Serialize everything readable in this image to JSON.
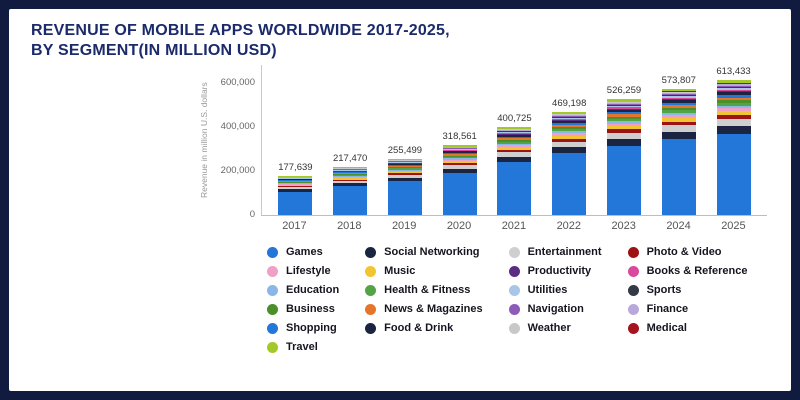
{
  "header": {
    "line1": "REVENUE OF MOBILE APPS WORLDWIDE 2017-2025,",
    "line2": "BY SEGMENT(IN MILLION USD)"
  },
  "colors": {
    "frame_navy": "#101b3f",
    "title_navy": "#1b2a6b",
    "games_blue": "#2277d8"
  },
  "chart_data": {
    "type": "stacked-bar",
    "title": "Revenue of mobile apps worldwide 2017-2025, by segment (in million USD)",
    "ylabel": "Revenue in million U.S. dollars",
    "xlabel": "",
    "grid": false,
    "legend_position": "bottom",
    "categories": [
      "2017",
      "2018",
      "2019",
      "2020",
      "2021",
      "2022",
      "2023",
      "2024",
      "2025"
    ],
    "totals": [
      177639,
      217470,
      255499,
      318561,
      400725,
      469198,
      526259,
      573807,
      613433
    ],
    "totals_labels": [
      "177,639",
      "217,470",
      "255,499",
      "318,561",
      "400,725",
      "469,198",
      "526,259",
      "573,807",
      "613,433"
    ],
    "y_max": 600000,
    "y_ticks": [
      {
        "value": 0,
        "label": "0"
      },
      {
        "value": 200000,
        "label": "200,000"
      },
      {
        "value": 400000,
        "label": "400,000"
      },
      {
        "value": 600000,
        "label": "600,000"
      }
    ],
    "segments": [
      {
        "name": "Games",
        "color": "#2277d8",
        "share": 0.6
      },
      {
        "name": "Social Networking",
        "color": "#1b2440",
        "share": 0.06
      },
      {
        "name": "Entertainment",
        "color": "#cfcfcf",
        "share": 0.05
      },
      {
        "name": "Photo & Video",
        "color": "#9c1313",
        "share": 0.03
      },
      {
        "name": "Music",
        "color": "#f2c431",
        "share": 0.03
      },
      {
        "name": "Lifestyle",
        "color": "#eea0c6",
        "share": 0.02
      },
      {
        "name": "Education",
        "color": "#8ab6e8",
        "share": 0.02
      },
      {
        "name": "Health & Fitness",
        "color": "#52a447",
        "share": 0.02
      },
      {
        "name": "Business",
        "color": "#4a8f29",
        "share": 0.02
      },
      {
        "name": "News & Magazines",
        "color": "#e4762c",
        "share": 0.02
      },
      {
        "name": "Shopping",
        "color": "#2277d8",
        "share": 0.02
      },
      {
        "name": "Food & Drink",
        "color": "#1b2440",
        "share": 0.02
      },
      {
        "name": "Productivity",
        "color": "#5a2d82",
        "share": 0.01
      },
      {
        "name": "Books & Reference",
        "color": "#d9489c",
        "share": 0.01
      },
      {
        "name": "Utilities",
        "color": "#a8c6e6",
        "share": 0.01
      },
      {
        "name": "Sports",
        "color": "#333a45",
        "share": 0.01
      },
      {
        "name": "Navigation",
        "color": "#8d5bb8",
        "share": 0.01
      },
      {
        "name": "Finance",
        "color": "#b9a8dc",
        "share": 0.01
      },
      {
        "name": "Weather",
        "color": "#c8c8c8",
        "share": 0.005
      },
      {
        "name": "Medical",
        "color": "#a51220",
        "share": 0.005
      },
      {
        "name": "Travel",
        "color": "#a2c82a",
        "share": 0.02
      }
    ]
  },
  "legend": {
    "columns": [
      [
        {
          "label": "Games",
          "color": "#2277d8"
        },
        {
          "label": "Lifestyle",
          "color": "#eea0c6"
        },
        {
          "label": "Education",
          "color": "#8ab6e8"
        },
        {
          "label": "Business",
          "color": "#4a8f29"
        },
        {
          "label": "Shopping",
          "color": "#2277d8"
        },
        {
          "label": "Travel",
          "color": "#a2c82a"
        }
      ],
      [
        {
          "label": "Social Networking",
          "color": "#1b2440"
        },
        {
          "label": "Music",
          "color": "#f2c431"
        },
        {
          "label": "Health & Fitness",
          "color": "#52a447"
        },
        {
          "label": "News & Magazines",
          "color": "#e4762c"
        },
        {
          "label": "Food & Drink",
          "color": "#1b2440"
        }
      ],
      [
        {
          "label": "Entertainment",
          "color": "#cfcfcf"
        },
        {
          "label": "Productivity",
          "color": "#5a2d82"
        },
        {
          "label": "Utilities",
          "color": "#a8c6e6"
        },
        {
          "label": "Navigation",
          "color": "#8d5bb8"
        },
        {
          "label": "Weather",
          "color": "#c8c8c8"
        }
      ],
      [
        {
          "label": "Photo & Video",
          "color": "#9c1313"
        },
        {
          "label": "Books & Reference",
          "color": "#d9489c"
        },
        {
          "label": "Sports",
          "color": "#333a45"
        },
        {
          "label": "Finance",
          "color": "#b9a8dc"
        },
        {
          "label": "Medical",
          "color": "#a51220"
        }
      ]
    ]
  }
}
